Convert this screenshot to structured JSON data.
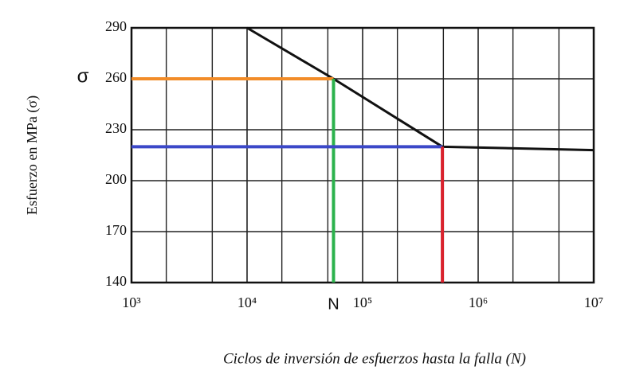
{
  "chart_data": {
    "type": "line",
    "xscale": "log",
    "xlabel": "Ciclos de inversión de esfuerzos hasta la falla (N)",
    "ylabel": "Esfuerzo en MPa (σ)",
    "xlim": [
      1000,
      10000000
    ],
    "ylim": [
      140,
      290
    ],
    "xticks": [
      {
        "value": 1000,
        "label": "10³"
      },
      {
        "value": 10000,
        "label": "10⁴"
      },
      {
        "value": 100000,
        "label": "10⁵"
      },
      {
        "value": 1000000,
        "label": "10⁶"
      },
      {
        "value": 10000000,
        "label": "10⁷"
      }
    ],
    "xminor": [
      2000,
      5000,
      20000,
      50000,
      200000,
      500000,
      2000000,
      5000000
    ],
    "yticks": [
      140,
      170,
      200,
      230,
      260,
      290
    ],
    "grid": true,
    "series": [
      {
        "color": "#111111",
        "x": [
          10000,
          56000,
          490000,
          10000000
        ],
        "values": [
          290,
          260,
          220,
          218
        ]
      }
    ],
    "sigma_marker": {
      "label": "σ",
      "value": 260,
      "x": 56000,
      "color": "#f28c28"
    },
    "n_marker": {
      "label": "N",
      "value": 56000,
      "y": 260,
      "color": "#2bb24c"
    },
    "endurance": {
      "y": 220,
      "x": 490000,
      "hcolor": "#3b48c8",
      "vcolor": "#d9232e"
    }
  }
}
